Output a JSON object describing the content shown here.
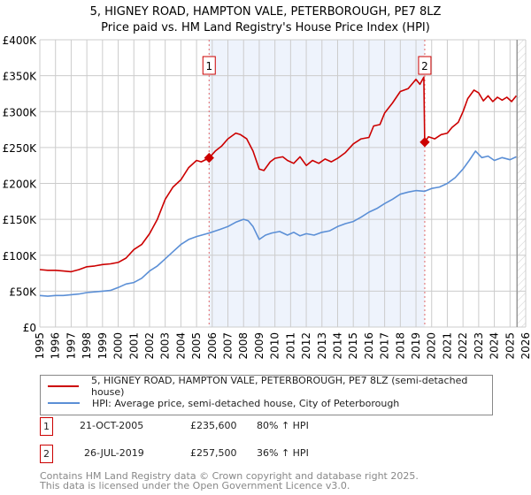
{
  "chart_data": {
    "type": "line",
    "title": "5, HIGNEY ROAD, HAMPTON VALE, PETERBOROUGH, PE7 8LZ",
    "subtitle": "Price paid vs. HM Land Registry's House Price Index (HPI)",
    "xlim": [
      1995,
      2026
    ],
    "ylim": [
      0,
      400000
    ],
    "y_ticks": [
      0,
      50000,
      100000,
      150000,
      200000,
      250000,
      300000,
      350000,
      400000
    ],
    "y_tick_labels": [
      "£0",
      "£50K",
      "£100K",
      "£150K",
      "£200K",
      "£250K",
      "£300K",
      "£350K",
      "£400K"
    ],
    "x_ticks": [
      "1995",
      "1996",
      "1997",
      "1998",
      "1999",
      "2000",
      "2001",
      "2002",
      "2003",
      "2004",
      "2005",
      "2006",
      "2007",
      "2008",
      "2009",
      "2010",
      "2011",
      "2012",
      "2013",
      "2014",
      "2015",
      "2016",
      "2017",
      "2018",
      "2019",
      "2020",
      "2021",
      "2022",
      "2023",
      "2024",
      "2025",
      "2026"
    ],
    "grid": true,
    "shaded_period": [
      2005.8,
      2019.56
    ],
    "forecast_hatch_from": 2025.45,
    "series": [
      {
        "name": "5, HIGNEY ROAD, HAMPTON VALE, PETERBOROUGH, PE7 8LZ (semi-detached house)",
        "color": "#cc0000",
        "x": [
          1995,
          1995.5,
          1996,
          1996.5,
          1997,
          1997.5,
          1998,
          1998.5,
          1999,
          1999.5,
          2000,
          2000.5,
          2001,
          2001.5,
          2002,
          2002.5,
          2003,
          2003.5,
          2004,
          2004.5,
          2005,
          2005.3,
          2005.8,
          2006.2,
          2006.6,
          2007,
          2007.5,
          2007.8,
          2008.2,
          2008.6,
          2009,
          2009.3,
          2009.7,
          2010,
          2010.5,
          2010.8,
          2011.2,
          2011.6,
          2012,
          2012.4,
          2012.8,
          2013.2,
          2013.6,
          2014,
          2014.5,
          2015,
          2015.5,
          2016,
          2016.3,
          2016.7,
          2017,
          2017.5,
          2018,
          2018.5,
          2019,
          2019.25,
          2019.5,
          2019.56,
          2019.8,
          2020.2,
          2020.6,
          2021,
          2021.3,
          2021.7,
          2022,
          2022.3,
          2022.7,
          2023,
          2023.3,
          2023.6,
          2023.9,
          2024.2,
          2024.5,
          2024.8,
          2025.1,
          2025.4
        ],
        "y": [
          80000,
          79000,
          79000,
          78000,
          77000,
          80000,
          84000,
          85000,
          87000,
          88000,
          90000,
          96000,
          108000,
          115000,
          130000,
          150000,
          178000,
          195000,
          205000,
          222000,
          232000,
          230000,
          235600,
          245000,
          252000,
          262000,
          270000,
          268000,
          262000,
          245000,
          220000,
          218000,
          230000,
          235000,
          237000,
          232000,
          228000,
          237000,
          225000,
          232000,
          228000,
          234000,
          230000,
          235000,
          243000,
          255000,
          262000,
          264000,
          280000,
          282000,
          298000,
          312000,
          328000,
          332000,
          345000,
          338000,
          348000,
          257500,
          265000,
          262000,
          268000,
          270000,
          278000,
          285000,
          300000,
          318000,
          330000,
          326000,
          315000,
          322000,
          314000,
          320000,
          316000,
          320000,
          314000,
          322000
        ]
      },
      {
        "name": "HPI: Average price, semi-detached house, City of Peterborough",
        "color": "#5b8fd6",
        "x": [
          1995,
          1995.5,
          1996,
          1996.5,
          1997,
          1997.5,
          1998,
          1998.5,
          1999,
          1999.5,
          2000,
          2000.5,
          2001,
          2001.5,
          2002,
          2002.5,
          2003,
          2003.5,
          2004,
          2004.5,
          2005,
          2005.8,
          2006.5,
          2007,
          2007.5,
          2008,
          2008.3,
          2008.6,
          2009,
          2009.4,
          2009.8,
          2010.3,
          2010.8,
          2011.2,
          2011.6,
          2012,
          2012.5,
          2013,
          2013.5,
          2014,
          2014.5,
          2015,
          2015.5,
          2016,
          2016.5,
          2017,
          2017.5,
          2018,
          2018.5,
          2019,
          2019.56,
          2020,
          2020.5,
          2021,
          2021.5,
          2022,
          2022.4,
          2022.8,
          2023.2,
          2023.6,
          2024,
          2024.5,
          2025,
          2025.4
        ],
        "y": [
          44000,
          43000,
          44000,
          44000,
          45000,
          46000,
          48000,
          49000,
          50000,
          51000,
          55000,
          60000,
          62000,
          68000,
          78000,
          85000,
          95000,
          105000,
          115000,
          122000,
          126000,
          131000,
          136000,
          140000,
          146000,
          150000,
          148000,
          140000,
          122000,
          128000,
          131000,
          133000,
          128000,
          132000,
          127000,
          130000,
          128000,
          132000,
          134000,
          140000,
          144000,
          147000,
          153000,
          160000,
          165000,
          172000,
          178000,
          185000,
          188000,
          190000,
          189000,
          193000,
          195000,
          200000,
          208000,
          220000,
          232000,
          245000,
          236000,
          238000,
          232000,
          236000,
          233000,
          237000
        ]
      }
    ],
    "annotations": [
      {
        "label": "1",
        "x": 2005.8,
        "value": 235600
      },
      {
        "label": "2",
        "x": 2019.56,
        "value": 257500
      }
    ]
  },
  "legend": {
    "property": "5, HIGNEY ROAD, HAMPTON VALE, PETERBOROUGH, PE7 8LZ (semi-detached house)",
    "hpi": "HPI: Average price, semi-detached house, City of Peterborough"
  },
  "transactions": [
    {
      "num": "1",
      "date": "21-OCT-2005",
      "price": "£235,600",
      "hpi": "80% ↑ HPI"
    },
    {
      "num": "2",
      "date": "26-JUL-2019",
      "price": "£257,500",
      "hpi": "36% ↑ HPI"
    }
  ],
  "footer": {
    "line1": "Contains HM Land Registry data © Crown copyright and database right 2025.",
    "line2": "This data is licensed under the Open Government Licence v3.0."
  }
}
